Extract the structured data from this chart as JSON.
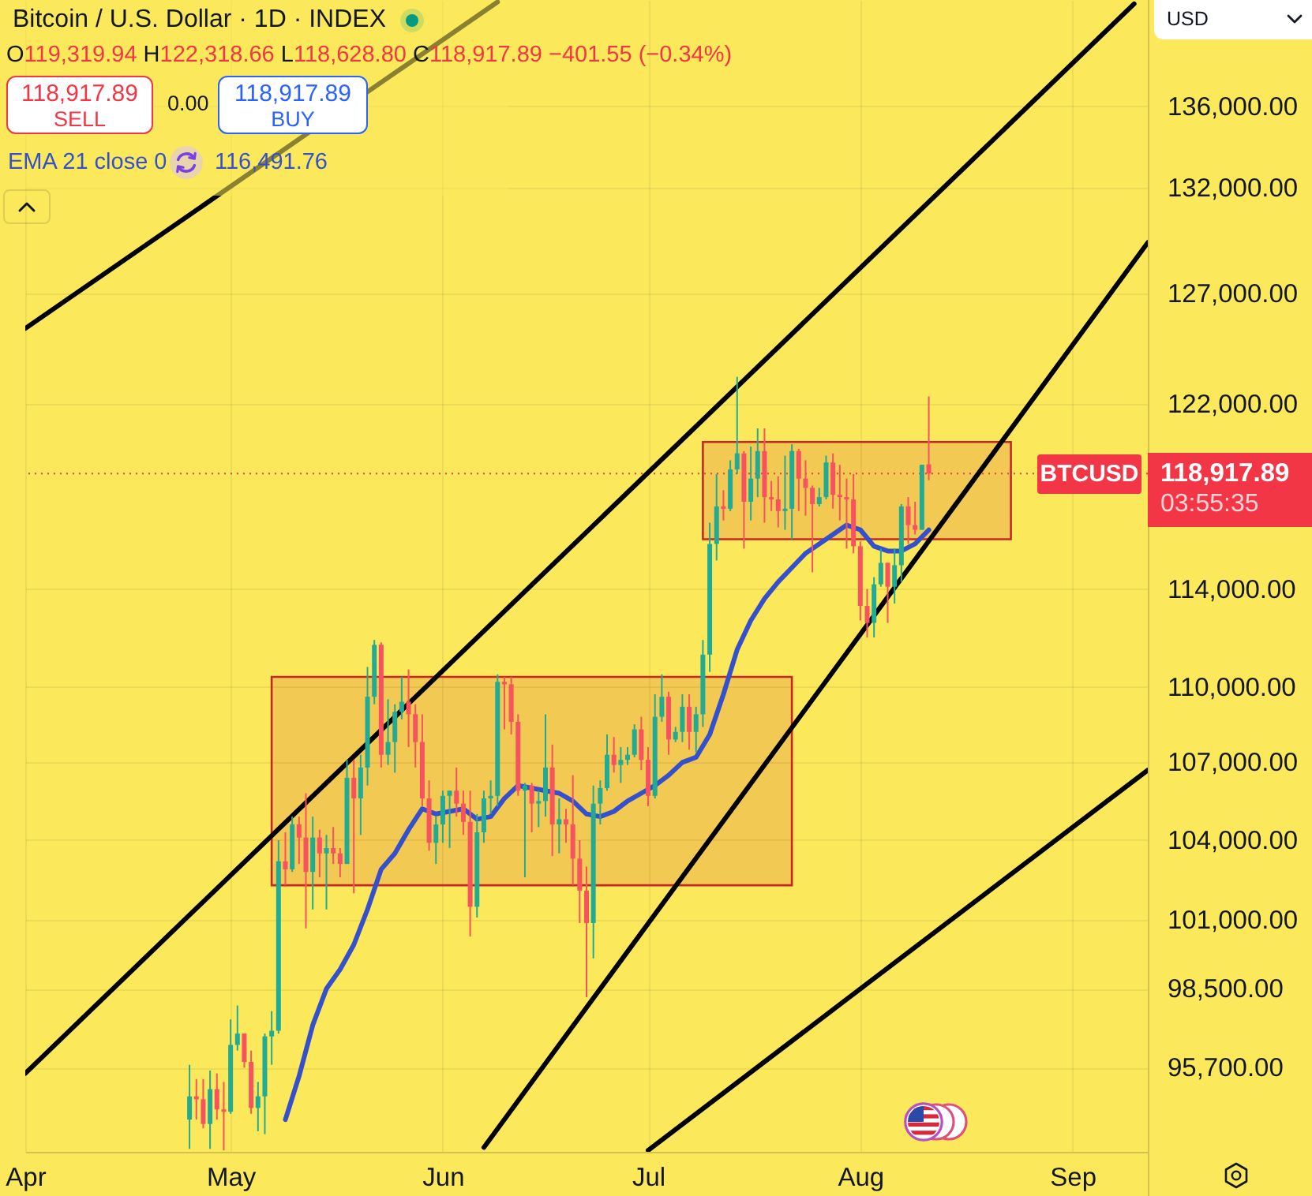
{
  "chart_data": {
    "type": "candlestick",
    "title": "Bitcoin / U.S. Dollar · 1D · INDEX",
    "subtitle": "O119,319.94 H122,318.66 L118,628.80 C118,917.89 −401.55 (−0.34%)",
    "x": [
      "--04-25",
      "--04-26",
      "--04-27",
      "--04-28",
      "--04-29",
      "--04-30",
      "--05-01",
      "--05-02",
      "--05-03",
      "--05-04",
      "--05-05",
      "--05-06",
      "--05-07",
      "--05-08",
      "--05-09",
      "--05-10",
      "--05-11",
      "--05-12",
      "--05-13",
      "--05-14",
      "--05-15",
      "--05-16",
      "--05-17",
      "--05-18",
      "--05-19",
      "--05-20",
      "--05-21",
      "--05-22",
      "--05-23",
      "--05-24",
      "--05-25",
      "--05-26",
      "--05-27",
      "--05-28",
      "--05-29",
      "--05-30",
      "--05-31",
      "--06-01",
      "--06-02",
      "--06-03",
      "--06-04",
      "--06-05",
      "--06-06",
      "--06-07",
      "--06-08",
      "--06-09",
      "--06-10",
      "--06-11",
      "--06-12",
      "--06-13",
      "--06-14",
      "--06-15",
      "--06-16",
      "--06-17",
      "--06-18",
      "--06-19",
      "--06-20",
      "--06-21",
      "--06-22",
      "--06-23",
      "--06-24",
      "--06-25",
      "--06-26",
      "--06-27",
      "--06-28",
      "--06-29",
      "--06-30",
      "--07-01",
      "--07-02",
      "--07-03",
      "--07-04",
      "--07-05",
      "--07-06",
      "--07-07",
      "--07-08",
      "--07-09",
      "--07-10",
      "--07-11",
      "--07-12",
      "--07-13",
      "--07-14",
      "--07-15",
      "--07-16",
      "--07-17",
      "--07-18",
      "--07-19",
      "--07-20",
      "--07-21",
      "--07-22",
      "--07-23",
      "--07-24",
      "--07-25",
      "--07-26",
      "--07-27",
      "--07-28",
      "--07-29",
      "--07-30",
      "--07-31",
      "--08-01",
      "--08-02",
      "--08-03",
      "--08-04",
      "--08-05",
      "--08-06",
      "--08-07",
      "--08-08",
      "--08-09",
      "--08-10",
      "--08-11"
    ],
    "ohlc": [
      [
        93900,
        95800,
        92900,
        94700
      ],
      [
        94700,
        95300,
        93900,
        94600
      ],
      [
        94600,
        95300,
        93600,
        93750
      ],
      [
        93750,
        95600,
        92900,
        94950
      ],
      [
        94950,
        95500,
        93900,
        94250
      ],
      [
        94250,
        95200,
        92850,
        94170
      ],
      [
        94170,
        97400,
        94100,
        96500
      ],
      [
        96500,
        97900,
        96300,
        96900
      ],
      [
        96900,
        96900,
        95700,
        95900
      ],
      [
        95900,
        96300,
        94100,
        94300
      ],
      [
        94300,
        95200,
        93500,
        94700
      ],
      [
        94700,
        96900,
        93400,
        96800
      ],
      [
        96800,
        97700,
        95800,
        97000
      ],
      [
        97000,
        104000,
        96900,
        103200
      ],
      [
        103200,
        104300,
        102300,
        102900
      ],
      [
        102900,
        104900,
        102800,
        104600
      ],
      [
        104600,
        104900,
        103100,
        104100
      ],
      [
        104100,
        105800,
        100700,
        102800
      ],
      [
        102800,
        104900,
        101400,
        104100
      ],
      [
        104100,
        104400,
        102600,
        103500
      ],
      [
        103500,
        104200,
        101400,
        103700
      ],
      [
        103700,
        104500,
        103100,
        103500
      ],
      [
        103500,
        103700,
        102600,
        103100
      ],
      [
        103100,
        107100,
        103100,
        106400
      ],
      [
        106400,
        107100,
        102000,
        105600
      ],
      [
        105600,
        107300,
        104200,
        106800
      ],
      [
        106800,
        110800,
        106100,
        109600
      ],
      [
        109600,
        111900,
        109300,
        111700
      ],
      [
        111700,
        111800,
        106800,
        107300
      ],
      [
        107300,
        109500,
        106900,
        107800
      ],
      [
        107800,
        109300,
        106600,
        109000
      ],
      [
        109000,
        110400,
        108700,
        109400
      ],
      [
        109400,
        110700,
        107600,
        108900
      ],
      [
        108900,
        109300,
        106800,
        107800
      ],
      [
        107800,
        108900,
        105300,
        105600
      ],
      [
        105600,
        106300,
        103600,
        103900
      ],
      [
        103900,
        104900,
        103100,
        104600
      ],
      [
        104600,
        105900,
        103900,
        105700
      ],
      [
        105700,
        105900,
        103700,
        105900
      ],
      [
        105900,
        106800,
        104900,
        105400
      ],
      [
        105400,
        105900,
        104200,
        104700
      ],
      [
        104700,
        105900,
        100400,
        101500
      ],
      [
        101500,
        105000,
        101100,
        104300
      ],
      [
        104300,
        105900,
        103900,
        105600
      ],
      [
        105600,
        106300,
        105000,
        105700
      ],
      [
        105700,
        110500,
        105300,
        110200
      ],
      [
        110200,
        110400,
        108300,
        110100
      ],
      [
        110100,
        110400,
        108100,
        108600
      ],
      [
        108600,
        108900,
        105700,
        105900
      ],
      [
        105900,
        106200,
        102600,
        106100
      ],
      [
        106100,
        106200,
        104300,
        105400
      ],
      [
        105400,
        105900,
        104500,
        105500
      ],
      [
        105500,
        108900,
        104900,
        106800
      ],
      [
        106800,
        107700,
        103400,
        104600
      ],
      [
        104600,
        105600,
        103500,
        104800
      ],
      [
        104800,
        105200,
        103900,
        104600
      ],
      [
        104600,
        106500,
        102300,
        103300
      ],
      [
        103300,
        104000,
        100900,
        102100
      ],
      [
        102100,
        103000,
        98200,
        100900
      ],
      [
        100900,
        106100,
        99600,
        105400
      ],
      [
        105400,
        106300,
        104600,
        106000
      ],
      [
        106000,
        108100,
        105900,
        107300
      ],
      [
        107300,
        108000,
        106600,
        106900
      ],
      [
        106900,
        107600,
        106200,
        107100
      ],
      [
        107100,
        107600,
        106900,
        107300
      ],
      [
        107300,
        108500,
        107200,
        108300
      ],
      [
        108300,
        108800,
        106700,
        107100
      ],
      [
        107100,
        107600,
        105300,
        105700
      ],
      [
        105700,
        109700,
        105600,
        108800
      ],
      [
        108800,
        110500,
        108600,
        109600
      ],
      [
        109600,
        109800,
        107300,
        107900
      ],
      [
        107900,
        108400,
        107800,
        108200
      ],
      [
        108200,
        109700,
        107800,
        109200
      ],
      [
        109200,
        109700,
        107500,
        108200
      ],
      [
        108200,
        109200,
        107400,
        108900
      ],
      [
        108900,
        111900,
        108400,
        111300
      ],
      [
        111300,
        116800,
        110600,
        115900
      ],
      [
        115900,
        118900,
        115200,
        117500
      ],
      [
        117500,
        118200,
        116900,
        117400
      ],
      [
        117400,
        119500,
        117300,
        119100
      ],
      [
        119100,
        123200,
        118900,
        119800
      ],
      [
        119800,
        119900,
        115700,
        117700
      ],
      [
        117700,
        120100,
        116900,
        118700
      ],
      [
        118700,
        120900,
        117900,
        119900
      ],
      [
        119900,
        120900,
        116800,
        117900
      ],
      [
        117900,
        118600,
        117300,
        117800
      ],
      [
        117800,
        118800,
        116600,
        117300
      ],
      [
        117300,
        119700,
        116500,
        117400
      ],
      [
        117400,
        120200,
        116100,
        119900
      ],
      [
        119900,
        120000,
        117300,
        118700
      ],
      [
        118700,
        119500,
        117100,
        118300
      ],
      [
        118300,
        118400,
        114700,
        117600
      ],
      [
        117600,
        118300,
        117500,
        117900
      ],
      [
        117900,
        119700,
        117800,
        119400
      ],
      [
        119400,
        119800,
        117400,
        118000
      ],
      [
        118000,
        119300,
        116900,
        117900
      ],
      [
        117900,
        118700,
        115700,
        117800
      ],
      [
        117800,
        118900,
        115500,
        115800
      ],
      [
        115800,
        116000,
        112700,
        113300
      ],
      [
        113300,
        114000,
        112000,
        112600
      ],
      [
        112600,
        114500,
        112000,
        114200
      ],
      [
        114200,
        115700,
        114100,
        115100
      ],
      [
        115100,
        115100,
        112600,
        114100
      ],
      [
        114100,
        115700,
        113400,
        115000
      ],
      [
        115000,
        117600,
        114300,
        117500
      ],
      [
        117500,
        117900,
        115900,
        116700
      ],
      [
        116700,
        117700,
        116300,
        116500
      ],
      [
        116500,
        119300,
        116500,
        119300
      ],
      [
        119319.94,
        122318.66,
        118628.8,
        118917.89
      ]
    ],
    "colors": [
      "#22ab94",
      "#f7525f",
      "#f7525f",
      "#22ab94",
      "#f7525f",
      "#f7525f",
      "#22ab94",
      "#22ab94",
      "#f7525f",
      "#f7525f",
      "#22ab94",
      "#22ab94",
      "#22ab94",
      "#22ab94",
      "#f7525f",
      "#22ab94",
      "#f7525f",
      "#f7525f",
      "#22ab94",
      "#f7525f",
      "#22ab94",
      "#f7525f",
      "#f7525f",
      "#22ab94",
      "#f7525f",
      "#22ab94",
      "#22ab94",
      "#22ab94",
      "#f7525f",
      "#22ab94",
      "#22ab94",
      "#22ab94",
      "#f7525f",
      "#f7525f",
      "#f7525f",
      "#f7525f",
      "#22ab94",
      "#22ab94",
      "#22ab94",
      "#f7525f",
      "#f7525f",
      "#f7525f",
      "#22ab94",
      "#22ab94",
      "#22ab94",
      "#22ab94",
      "#f7525f",
      "#f7525f",
      "#f7525f",
      "#22ab94",
      "#f7525f",
      "#22ab94",
      "#22ab94",
      "#f7525f",
      "#22ab94",
      "#f7525f",
      "#f7525f",
      "#f7525f",
      "#f7525f",
      "#22ab94",
      "#22ab94",
      "#22ab94",
      "#f7525f",
      "#22ab94",
      "#22ab94",
      "#22ab94",
      "#f7525f",
      "#f7525f",
      "#22ab94",
      "#22ab94",
      "#f7525f",
      "#22ab94",
      "#22ab94",
      "#f7525f",
      "#22ab94",
      "#22ab94",
      "#22ab94",
      "#22ab94",
      "#f7525f",
      "#22ab94",
      "#22ab94",
      "#f7525f",
      "#22ab94",
      "#22ab94",
      "#f7525f",
      "#f7525f",
      "#f7525f",
      "#22ab94",
      "#22ab94",
      "#f7525f",
      "#f7525f",
      "#f7525f",
      "#22ab94",
      "#22ab94",
      "#f7525f",
      "#f7525f",
      "#f7525f",
      "#f7525f",
      "#f7525f",
      "#f7525f",
      "#22ab94",
      "#22ab94",
      "#f7525f",
      "#22ab94",
      "#22ab94",
      "#f7525f",
      "#f7525f",
      "#22ab94",
      "#f7525f"
    ],
    "series": [
      {
        "type": "area",
        "color": "#c62828",
        "x": [
          "--05-07",
          "--05-07",
          "--07-22",
          "--07-22",
          "--05-07"
        ],
        "values": [
          102300,
          110400,
          110400,
          102300,
          102300
        ]
      },
      {
        "type": "area",
        "color": "#c62828",
        "x": [
          "--07-09",
          "--07-09",
          "--08-23",
          "--08-23",
          "--07-09"
        ],
        "values": [
          116100,
          120300,
          120300,
          116100,
          116100
        ]
      },
      {
        "type": "line",
        "name": "EMA 21 close 0",
        "color": "#3550cc",
        "x": [
          "--05-09",
          "--05-11",
          "--05-13",
          "--05-15",
          "--05-17",
          "--05-19",
          "--05-21",
          "--05-23",
          "--05-25",
          "--05-27",
          "--05-29",
          "--05-31",
          "--06-02",
          "--06-04",
          "--06-06",
          "--06-08",
          "--06-10",
          "--06-12",
          "--06-14",
          "--06-16",
          "--06-18",
          "--06-20",
          "--06-22",
          "--06-24",
          "--06-26",
          "--06-28",
          "--06-30",
          "--07-02",
          "--07-04",
          "--07-06",
          "--07-08",
          "--07-10",
          "--07-12",
          "--07-14",
          "--07-16",
          "--07-18",
          "--07-20",
          "--07-22",
          "--07-24",
          "--07-26",
          "--07-28",
          "--07-30",
          "--08-01",
          "--08-03",
          "--08-05",
          "--08-07",
          "--08-09",
          "--08-11"
        ],
        "values": [
          93900,
          95400,
          97200,
          98500,
          99200,
          100100,
          101400,
          102900,
          103500,
          104400,
          105200,
          105000,
          105100,
          105200,
          104800,
          104900,
          105600,
          106100,
          106000,
          105900,
          105800,
          105500,
          105000,
          104900,
          105100,
          105500,
          105800,
          106100,
          106500,
          107000,
          107200,
          108100,
          109700,
          111500,
          112700,
          113600,
          114300,
          114900,
          115500,
          115900,
          116300,
          116700,
          116500,
          115800,
          115600,
          115600,
          115900,
          116491.76
        ]
      },
      {
        "type": "line",
        "color": "#000000",
        "x": [
          "--04-01",
          "--06-09"
        ],
        "values": [
          125400,
          141300
        ]
      },
      {
        "type": "line",
        "color": "#000000",
        "x": [
          "--04-01",
          "--09-10"
        ],
        "values": [
          95500,
          141200
        ]
      },
      {
        "type": "line",
        "color": "#000000",
        "x": [
          "--06-07",
          "--09-12"
        ],
        "values": [
          92950,
          129400
        ]
      },
      {
        "type": "line",
        "color": "#000000",
        "x": [
          "--07-01",
          "--09-12"
        ],
        "values": [
          92850,
          106700
        ]
      }
    ],
    "xlim": [
      "--04-01",
      "--09-12"
    ],
    "xticks": [
      {
        "value": "--04-01",
        "label": "Apr"
      },
      {
        "value": "--05-01",
        "label": "May"
      },
      {
        "value": "--06-01",
        "label": "Jun"
      },
      {
        "value": "--07-01",
        "label": "Jul"
      },
      {
        "value": "--08-01",
        "label": "Aug"
      },
      {
        "value": "--09-01",
        "label": "Sep"
      }
    ],
    "ylim": [
      92800,
      141400
    ],
    "yticks": [
      {
        "value": 95700,
        "label": "95,700.00"
      },
      {
        "value": 98500,
        "label": "98,500.00"
      },
      {
        "value": 101000,
        "label": "101,000.00"
      },
      {
        "value": 104000,
        "label": "104,000.00"
      },
      {
        "value": 107000,
        "label": "107,000.00"
      },
      {
        "value": 110000,
        "label": "110,000.00"
      },
      {
        "value": 114000,
        "label": "114,000.00"
      },
      {
        "value": 122000,
        "label": "122,000.00"
      },
      {
        "value": 127000,
        "label": "127,000.00"
      },
      {
        "value": 132000,
        "label": "132,000.00"
      },
      {
        "value": 136000,
        "label": "136,000.00"
      }
    ],
    "log": true,
    "grid": true,
    "legend": "top left",
    "ref_lines": [
      {
        "axis": "y",
        "value": 118917.89,
        "label": "BTCUSD",
        "color": "#f23645",
        "line_style": "dotted"
      }
    ],
    "annotations": [
      "118,917.89",
      "03:55:35",
      "118,917.89",
      "SELL",
      "0.00",
      "118,917.89",
      "BUY",
      "116,491.76",
      "USD"
    ]
  }
}
